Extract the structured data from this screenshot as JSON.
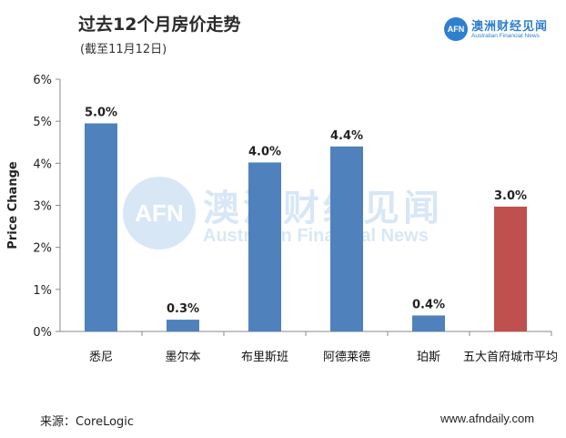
{
  "header": {
    "title": "过去12个月房价走势",
    "subtitle": "(截至11月12日)"
  },
  "logo": {
    "mark": "AFN",
    "name_cn": "澳洲财经见闻",
    "name_en": "Australian Financial News"
  },
  "watermark": {
    "mark": "AFN",
    "name_cn": "澳洲财经见闻",
    "name_en": "Australian Financial News"
  },
  "footer": {
    "source": "来源：CoreLogic",
    "website": "www.afndaily.com"
  },
  "chart_data": {
    "type": "bar",
    "title": "过去12个月房价走势",
    "subtitle": "(截至11月12日)",
    "xlabel": "",
    "ylabel": "Price Change",
    "ylim": [
      0,
      6
    ],
    "yticks": [
      0,
      1,
      2,
      3,
      4,
      5,
      6
    ],
    "ytick_labels": [
      "0%",
      "1%",
      "2%",
      "3%",
      "4%",
      "5%",
      "6%"
    ],
    "categories": [
      "悉尼",
      "墨尔本",
      "布里斯班",
      "阿德莱德",
      "珀斯",
      "五大首府城市平均"
    ],
    "values": [
      4.95,
      0.28,
      4.02,
      4.4,
      0.38,
      2.97
    ],
    "data_labels": [
      "5.0%",
      "0.3%",
      "4.0%",
      "4.4%",
      "0.4%",
      "3.0%"
    ],
    "colors": [
      "#4f81bd",
      "#4f81bd",
      "#4f81bd",
      "#4f81bd",
      "#4f81bd",
      "#c0504d"
    ],
    "grid": false,
    "legend": "none"
  }
}
